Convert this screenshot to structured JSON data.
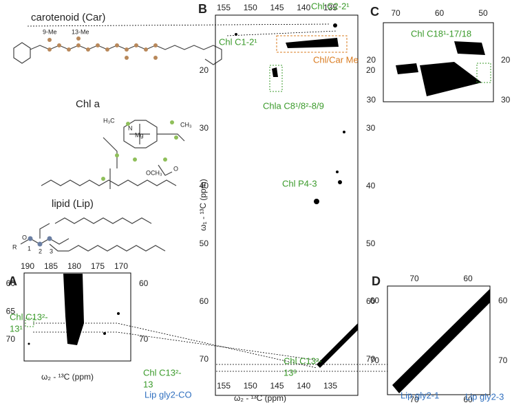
{
  "molecules": {
    "car": {
      "title": "carotenoid (Car)",
      "labels": [
        "9-Me",
        "13-Me"
      ]
    },
    "chl": {
      "title": "Chl a",
      "labels": [
        "Mg",
        "H₃C",
        "CH₃",
        "N",
        "OCH₃",
        "O"
      ]
    },
    "lipid": {
      "title": "lipid (Lip)",
      "labels": [
        "R",
        "O",
        "1",
        "2",
        "3"
      ]
    }
  },
  "panels": [
    {
      "label": "A",
      "xticks_top": [
        190,
        185,
        180,
        175,
        170
      ],
      "yticks_left": [
        60,
        65,
        70
      ],
      "yticks_right": [
        60,
        70
      ],
      "xlabel": "ω₂ - ¹³C (ppm)",
      "annotations": [
        {
          "lines": [
            "Chl C13²-",
            "13¹"
          ],
          "color": "#3a9a2a"
        },
        {
          "lines": [
            "Chl C13²-",
            "13"
          ],
          "color": "#3a9a2a"
        },
        {
          "lines": [
            "Lip gly2-CO"
          ],
          "color": "#2f6fbf"
        }
      ]
    },
    {
      "label": "B",
      "xticks_top": [
        155,
        150,
        145,
        140,
        135
      ],
      "xticks_bottom": [
        155,
        150,
        145,
        140,
        135
      ],
      "yticks_left": [
        20,
        30,
        40,
        50,
        60,
        70
      ],
      "yticks_right": [
        20,
        30,
        40,
        50,
        60,
        70
      ],
      "xlabel": "ω₂ - ¹³C (ppm)",
      "ylabel": "ω₁ - ¹³C (ppm)",
      "annotations": [
        {
          "lines": [
            "Chl C2-2¹"
          ],
          "color": "#3a9a2a"
        },
        {
          "lines": [
            "Chl C1-2¹"
          ],
          "color": "#3a9a2a"
        },
        {
          "lines": [
            "Chl/Car Me"
          ],
          "color": "#d97b1f"
        },
        {
          "lines": [
            "Chla C8¹/8²-8/9"
          ],
          "color": "#3a9a2a"
        },
        {
          "lines": [
            "Chl P4-3"
          ],
          "color": "#3a9a2a"
        },
        {
          "lines": [
            "Chl C13²-",
            "13³"
          ],
          "color": "#3a9a2a"
        }
      ]
    },
    {
      "label": "C",
      "xticks_top": [
        70,
        60,
        50
      ],
      "yticks_left": [
        20,
        30
      ],
      "yticks_right": [
        20,
        30
      ],
      "annotations": [
        {
          "lines": [
            "Chl C18¹-17/18"
          ],
          "color": "#3a9a2a"
        }
      ]
    },
    {
      "label": "D",
      "xticks_top": [
        70,
        60
      ],
      "xticks_bottom": [
        70,
        60
      ],
      "yticks_left": [
        60,
        70
      ],
      "yticks_right": [
        60,
        70
      ],
      "annotations": [
        {
          "lines": [
            "Lip gly2-1"
          ],
          "color": "#2f6fbf"
        },
        {
          "lines": [
            "Lip gly2-3"
          ],
          "color": "#2f6fbf"
        }
      ]
    }
  ]
}
